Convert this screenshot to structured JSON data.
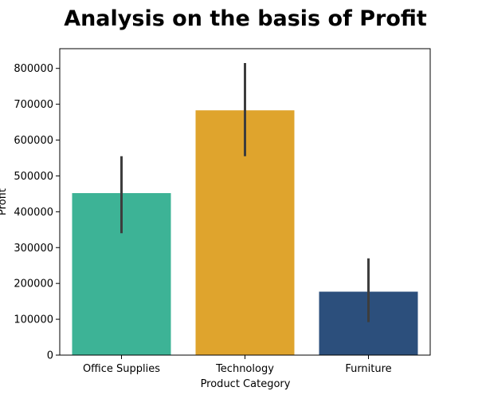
{
  "chart_data": {
    "type": "bar",
    "title": "Analysis on the basis of Profit",
    "xlabel": "Product Category",
    "ylabel": "Profit",
    "categories": [
      "Office Supplies",
      "Technology",
      "Furniture"
    ],
    "values": [
      452000,
      683000,
      177000
    ],
    "error_bars": [
      [
        340000,
        555000
      ],
      [
        555000,
        815000
      ],
      [
        92000,
        270000
      ]
    ],
    "colors": [
      "#3db396",
      "#dfa42d",
      "#2c4f7c"
    ],
    "error_bar_color": "#3d3d3d",
    "ylim": [
      0,
      855000
    ],
    "yticks": [
      0,
      100000,
      200000,
      300000,
      400000,
      500000,
      600000,
      700000,
      800000
    ],
    "ytick_labels": [
      "0",
      "100000",
      "200000",
      "300000",
      "400000",
      "500000",
      "600000",
      "700000",
      "800000"
    ],
    "grid": false,
    "legend": "none"
  }
}
